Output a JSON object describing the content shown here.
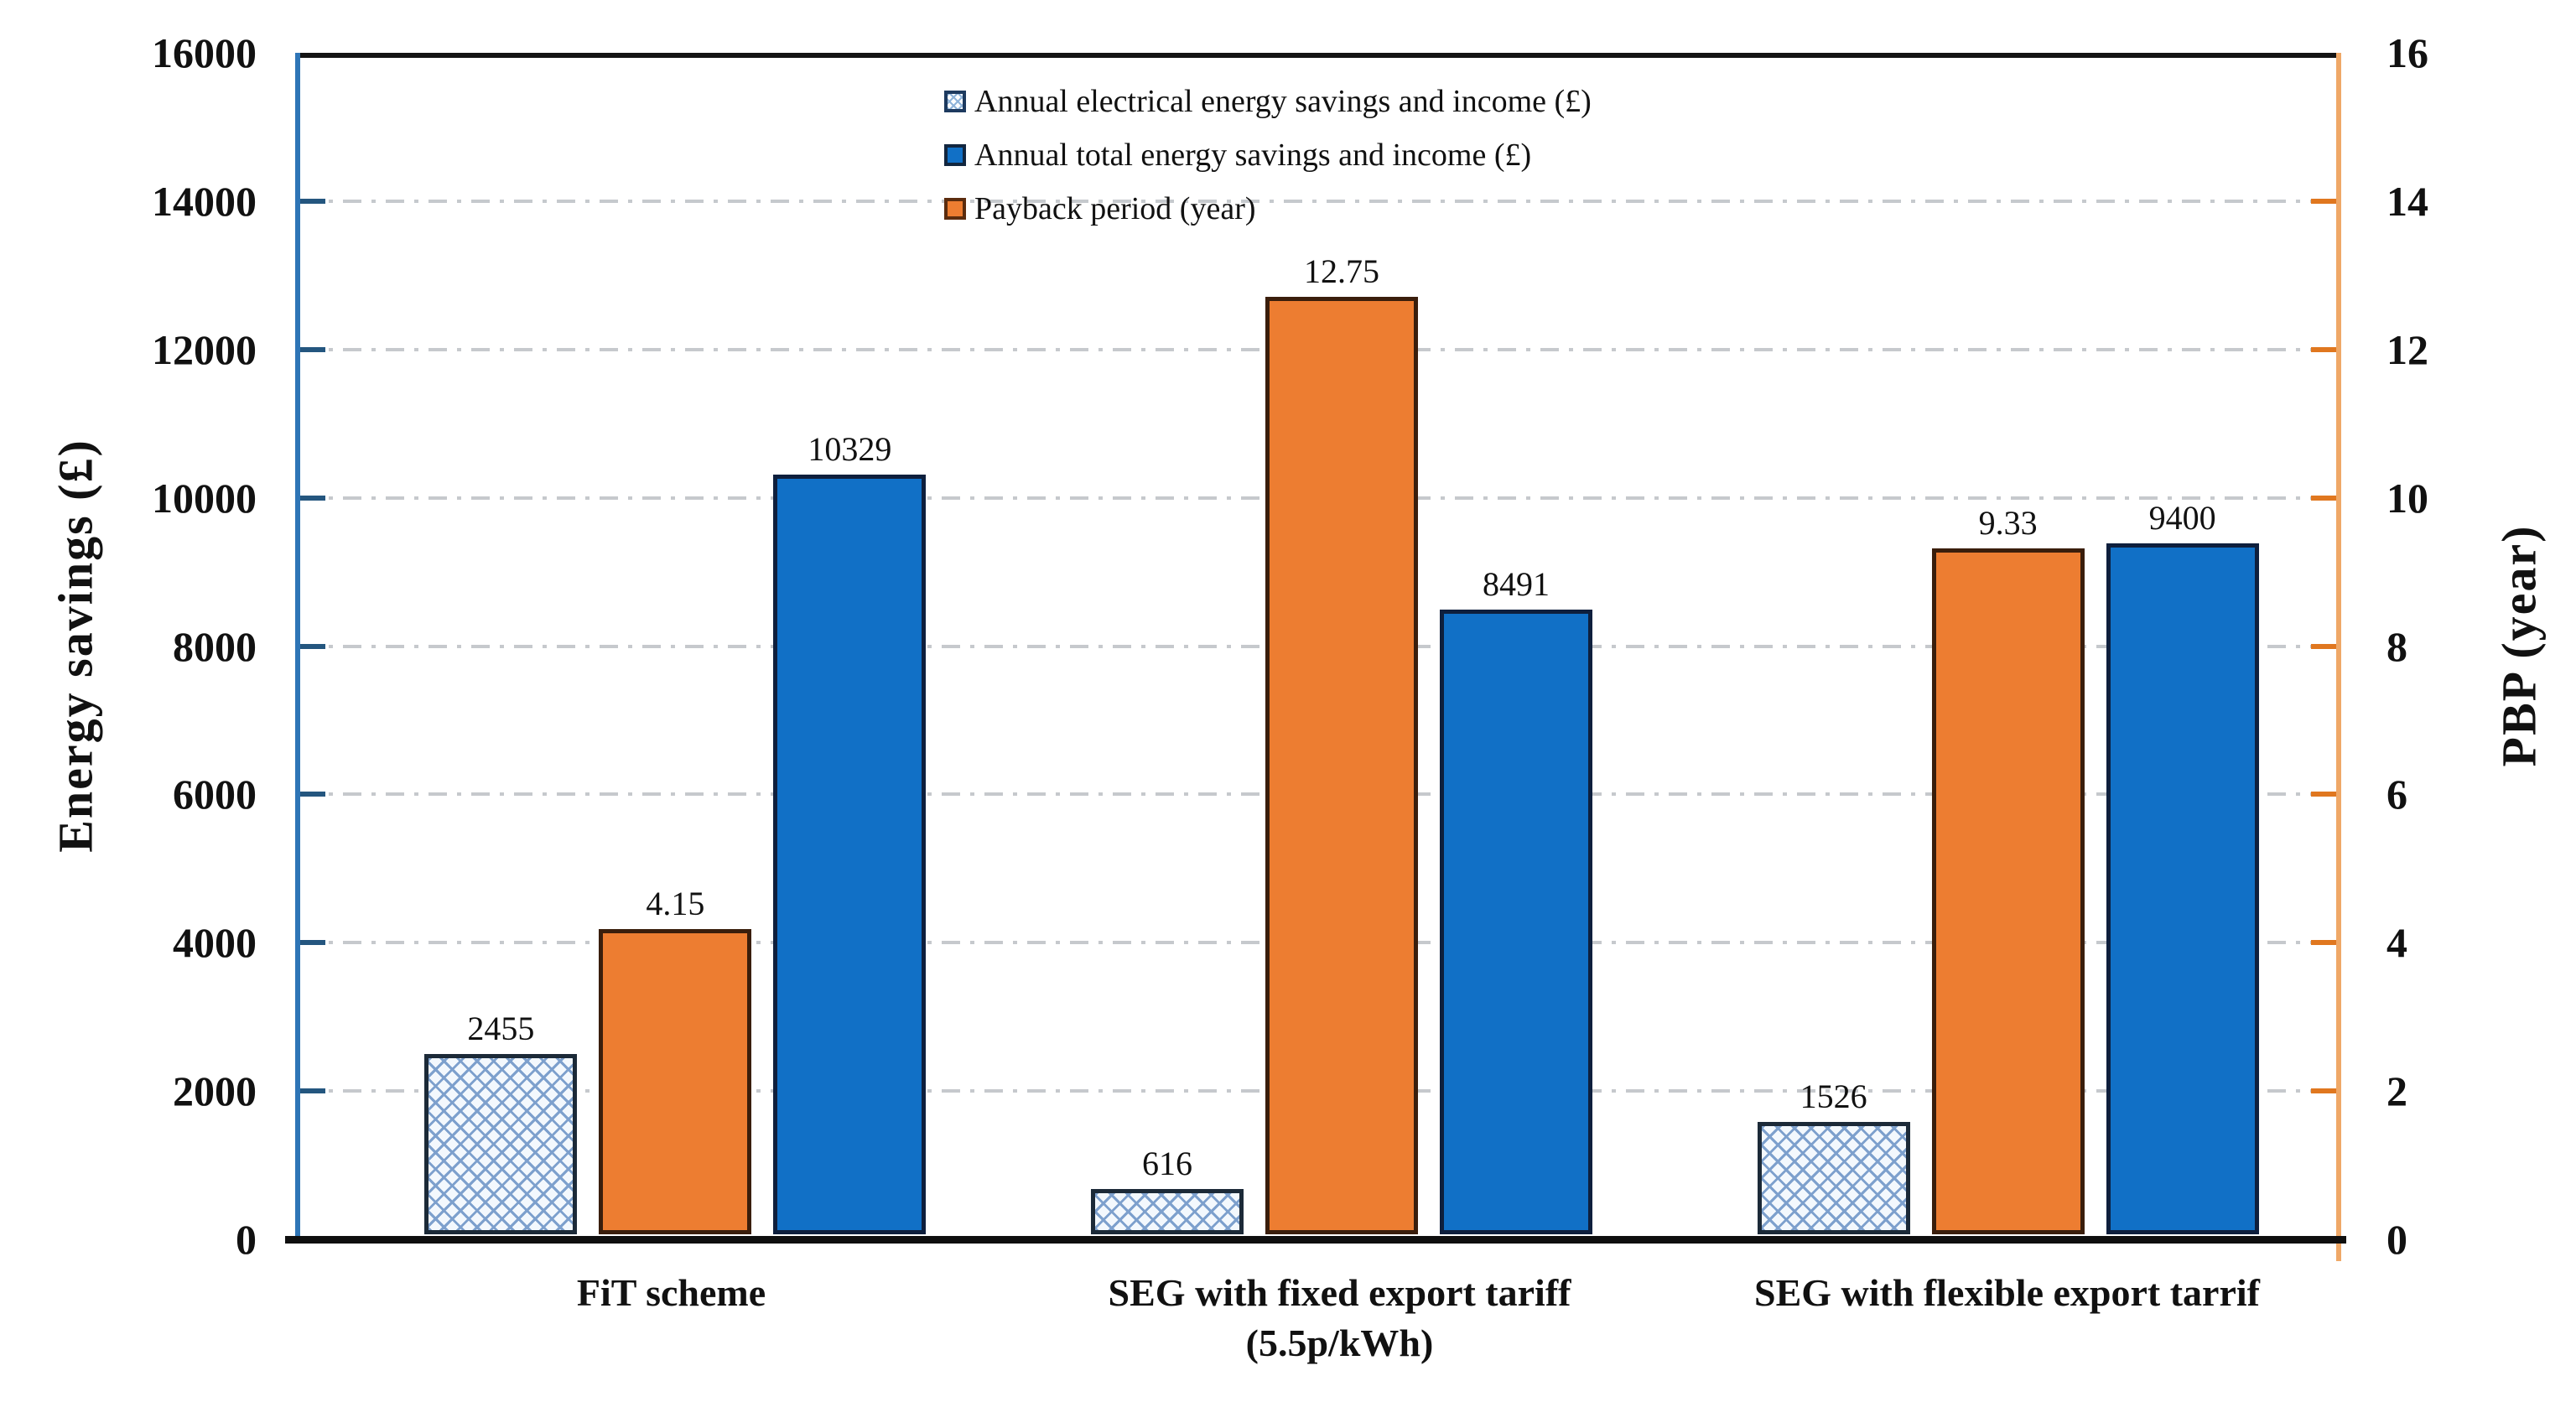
{
  "figure": {
    "left_axis": {
      "title": "Energy savings (£)",
      "tick_labels": [
        "0",
        "2000",
        "4000",
        "6000",
        "8000",
        "10000",
        "12000",
        "14000",
        "16000"
      ],
      "spine_color": "#2E75B6",
      "tick_color": "#24567F"
    },
    "right_axis": {
      "title": "PBP (year)",
      "tick_labels": [
        "0",
        "2",
        "4",
        "6",
        "8",
        "10",
        "12",
        "14",
        "16"
      ],
      "spine_color": "#EFA867",
      "tick_color": "#E0771F"
    },
    "grid_color": "#c6c9cd",
    "category_display": [
      "FiT scheme",
      "SEG with fixed export tariff\n(5.5p/kWh)",
      "SEG with flexible export tarrif"
    ]
  },
  "chart_data": {
    "type": "bar",
    "title": "",
    "categories": [
      "FiT scheme",
      "SEG with fixed export tariff (5.5p/kWh)",
      "SEG with flexible export tarrif"
    ],
    "series": [
      {
        "name": "Annual electrical energy savings and income (£)",
        "axis": "left",
        "style": "hatched",
        "color": "#9DC3E6",
        "values": [
          2455,
          616,
          1526
        ],
        "value_labels": [
          "2455",
          "616",
          "1526"
        ]
      },
      {
        "name": "Annual total energy savings and income (£)",
        "axis": "left",
        "style": "solid",
        "color": "#1170C6",
        "values": [
          10329,
          8491,
          9400
        ],
        "value_labels": [
          "10329",
          "8491",
          "9400"
        ]
      },
      {
        "name": "Payback period (year)",
        "axis": "right",
        "style": "solid",
        "color": "#ED7D31",
        "values": [
          4.15,
          12.75,
          9.33
        ],
        "value_labels": [
          "4.15",
          "12.75",
          "9.33"
        ]
      }
    ],
    "bar_order_in_group": [
      0,
      2,
      1
    ],
    "xlabel": "",
    "ylabel_left": "Energy savings (£)",
    "ylabel_right": "PBP (year)",
    "left_ylim": [
      0,
      16000
    ],
    "right_ylim": [
      0,
      16
    ],
    "left_tick_step": 2000,
    "right_tick_step": 2,
    "grid": "horizontal dash-dot",
    "legend_position": "top-center-inside"
  }
}
